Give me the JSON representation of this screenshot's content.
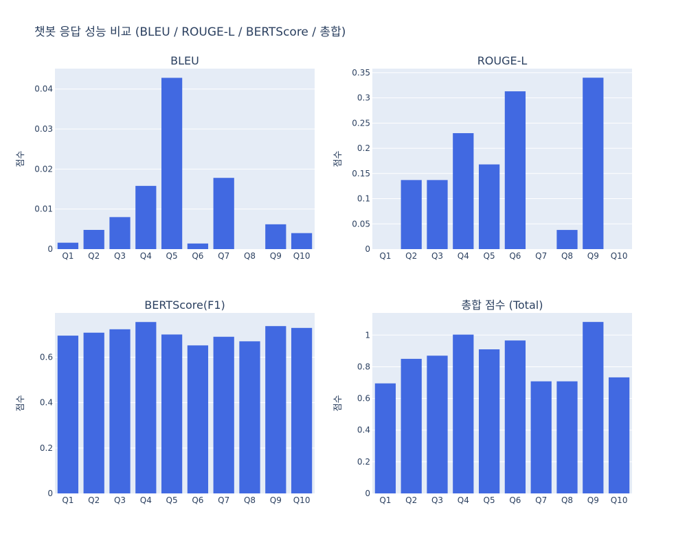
{
  "title": "챗봇 응답 성능 비교 (BLEU / ROUGE-L / BERTScore / 총합)",
  "colors": {
    "bar": "#4169e1",
    "panel_bg": "#e5ecf6",
    "text": "#2a3f5f"
  },
  "chart_data": [
    {
      "type": "bar",
      "title": "BLEU",
      "ylabel": "점수",
      "categories": [
        "Q1",
        "Q2",
        "Q3",
        "Q4",
        "Q5",
        "Q6",
        "Q7",
        "Q8",
        "Q9",
        "Q10"
      ],
      "values": [
        0.0016,
        0.0048,
        0.008,
        0.0158,
        0.0428,
        0.0014,
        0.0178,
        0,
        0.0062,
        0.004
      ],
      "ylim": [
        0,
        0.0451
      ],
      "yticks": [
        0,
        0.01,
        0.02,
        0.03,
        0.04
      ],
      "ytick_labels": [
        "0",
        "0.01",
        "0.02",
        "0.03",
        "0.04"
      ]
    },
    {
      "type": "bar",
      "title": "ROUGE-L",
      "ylabel": "점수",
      "categories": [
        "Q1",
        "Q2",
        "Q3",
        "Q4",
        "Q5",
        "Q6",
        "Q7",
        "Q8",
        "Q9",
        "Q10"
      ],
      "values": [
        0,
        0.137,
        0.137,
        0.23,
        0.168,
        0.313,
        0,
        0.038,
        0.34,
        0
      ],
      "ylim": [
        0,
        0.358
      ],
      "yticks": [
        0,
        0.05,
        0.1,
        0.15,
        0.2,
        0.25,
        0.3,
        0.35
      ],
      "ytick_labels": [
        "0",
        "0.05",
        "0.1",
        "0.15",
        "0.2",
        "0.25",
        "0.3",
        "0.35"
      ]
    },
    {
      "type": "bar",
      "title": "BERTScore(F1)",
      "ylabel": "점수",
      "categories": [
        "Q1",
        "Q2",
        "Q3",
        "Q4",
        "Q5",
        "Q6",
        "Q7",
        "Q8",
        "Q9",
        "Q10"
      ],
      "values": [
        0.695,
        0.708,
        0.723,
        0.755,
        0.7,
        0.652,
        0.69,
        0.67,
        0.737,
        0.729
      ],
      "ylim": [
        0,
        0.795
      ],
      "yticks": [
        0,
        0.2,
        0.4,
        0.6
      ],
      "ytick_labels": [
        "0",
        "0.2",
        "0.4",
        "0.6"
      ]
    },
    {
      "type": "bar",
      "title": "총합 점수 (Total)",
      "ylabel": "점수",
      "categories": [
        "Q1",
        "Q2",
        "Q3",
        "Q4",
        "Q5",
        "Q6",
        "Q7",
        "Q8",
        "Q9",
        "Q10"
      ],
      "values": [
        0.695,
        0.85,
        0.87,
        1.003,
        0.91,
        0.966,
        0.708,
        0.708,
        1.083,
        0.733
      ],
      "ylim": [
        0,
        1.14
      ],
      "yticks": [
        0,
        0.2,
        0.4,
        0.6,
        0.8,
        1
      ],
      "ytick_labels": [
        "0",
        "0.2",
        "0.4",
        "0.6",
        "0.8",
        "1"
      ]
    }
  ]
}
